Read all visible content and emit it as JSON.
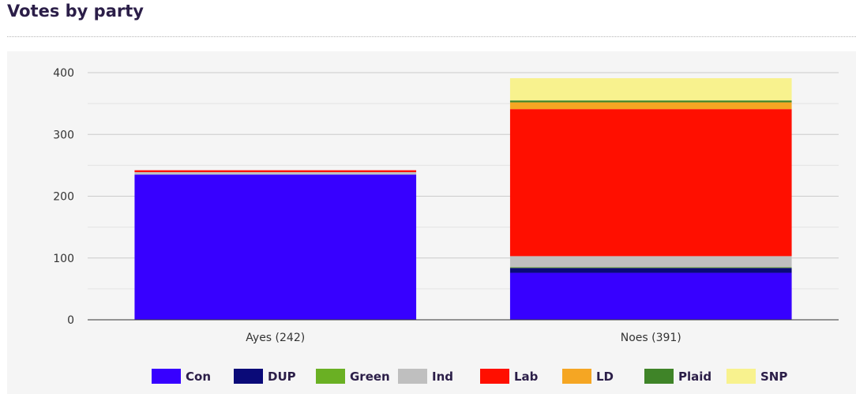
{
  "header": {
    "title": "Votes by party"
  },
  "chart_data": {
    "type": "bar",
    "stacked": true,
    "title": "Votes by party",
    "xlabel": "",
    "ylabel": "",
    "ylim": [
      0,
      400
    ],
    "yticks": [
      0,
      100,
      200,
      300,
      400
    ],
    "grid": true,
    "legend_position": "bottom",
    "categories": [
      "Ayes (242)",
      "Noes (391)"
    ],
    "series": [
      {
        "name": "Con",
        "color": "#3700ff",
        "values": [
          235,
          76
        ]
      },
      {
        "name": "DUP",
        "color": "#0a0a78",
        "values": [
          0,
          8
        ]
      },
      {
        "name": "Green",
        "color": "#6ab023",
        "values": [
          0,
          1
        ]
      },
      {
        "name": "Ind",
        "color": "#bfbfbf",
        "values": [
          4,
          18
        ]
      },
      {
        "name": "Lab",
        "color": "#ff0f00",
        "values": [
          3,
          238
        ]
      },
      {
        "name": "LD",
        "color": "#f5a623",
        "values": [
          0,
          11
        ]
      },
      {
        "name": "Plaid",
        "color": "#3f8428",
        "values": [
          0,
          3
        ]
      },
      {
        "name": "SNP",
        "color": "#f8f28e",
        "values": [
          0,
          36
        ]
      }
    ]
  }
}
